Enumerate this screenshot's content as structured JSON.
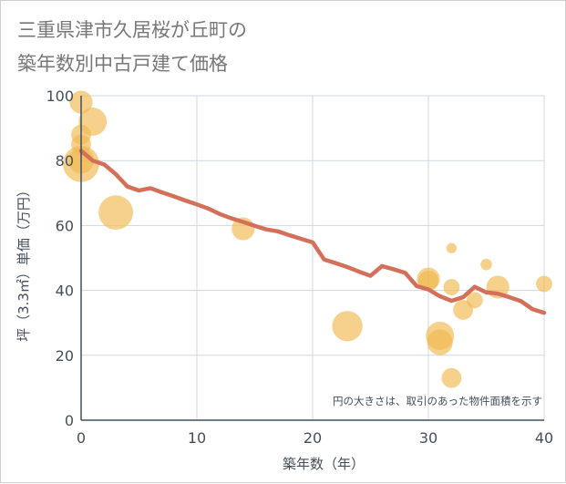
{
  "title_lines": [
    "三重県津市久居桜が丘町の",
    "築年数別中古戸建て価格"
  ],
  "chart_data": {
    "type": "scatter",
    "title": "三重県津市久居桜が丘町の築年数別中古戸建て価格",
    "xlabel": "築年数（年）",
    "ylabel": "坪（3.3㎡）単価（万円）",
    "xlim": [
      0,
      40
    ],
    "ylim": [
      0,
      100
    ],
    "xticks": [
      0,
      10,
      20,
      30,
      40
    ],
    "yticks": [
      0,
      20,
      40,
      60,
      80,
      100
    ],
    "grid": true,
    "annotation": "円の大きさは、取引のあった物件面積を示す",
    "colors": {
      "bubble": "#f0b94f",
      "line": "#d4705a",
      "grid": "#d0d7e2",
      "axis": "#444e5a"
    },
    "points": [
      {
        "x": 0,
        "y": 98,
        "size": 4
      },
      {
        "x": 0,
        "y": 88,
        "size": 3
      },
      {
        "x": 0,
        "y": 85,
        "size": 3
      },
      {
        "x": 0,
        "y": 80,
        "size": 5
      },
      {
        "x": 0,
        "y": 79,
        "size": 10
      },
      {
        "x": 1,
        "y": 92,
        "size": 6
      },
      {
        "x": 3,
        "y": 64,
        "size": 9
      },
      {
        "x": 14,
        "y": 59,
        "size": 4
      },
      {
        "x": 23,
        "y": 29,
        "size": 7
      },
      {
        "x": 30,
        "y": 43.5,
        "size": 4
      },
      {
        "x": 30,
        "y": 43,
        "size": 3
      },
      {
        "x": 31,
        "y": 26,
        "size": 6
      },
      {
        "x": 31,
        "y": 24,
        "size": 5
      },
      {
        "x": 32,
        "y": 53,
        "size": 0.8
      },
      {
        "x": 32,
        "y": 41,
        "size": 2
      },
      {
        "x": 32,
        "y": 13,
        "size": 3
      },
      {
        "x": 33,
        "y": 34,
        "size": 3
      },
      {
        "x": 34,
        "y": 37,
        "size": 2
      },
      {
        "x": 35,
        "y": 48,
        "size": 1
      },
      {
        "x": 36,
        "y": 41,
        "size": 4
      },
      {
        "x": 40,
        "y": 42,
        "size": 2
      }
    ],
    "trend_line": {
      "x": [
        0,
        1,
        2,
        3,
        4,
        5,
        6,
        7,
        8,
        9,
        10,
        11,
        12,
        13,
        14,
        15,
        16,
        17,
        18,
        19,
        20,
        21,
        22,
        23,
        24,
        25,
        26,
        27,
        28,
        29,
        30,
        31,
        32,
        33,
        34,
        35,
        36,
        37,
        38,
        39,
        40
      ],
      "y": [
        83,
        80,
        78.8,
        75.8,
        72,
        70.8,
        71.5,
        70.2,
        69,
        67.7,
        66.5,
        65.2,
        63.5,
        62.2,
        61.1,
        59.9,
        58.8,
        58.2,
        57,
        55.9,
        54.8,
        49.5,
        48.4,
        47.2,
        45.8,
        44.5,
        47.5,
        46.5,
        45.4,
        41.3,
        40.3,
        38.2,
        36.8,
        37.9,
        41.1,
        39.4,
        39,
        37.9,
        36.7,
        34.2,
        33.1
      ]
    }
  }
}
